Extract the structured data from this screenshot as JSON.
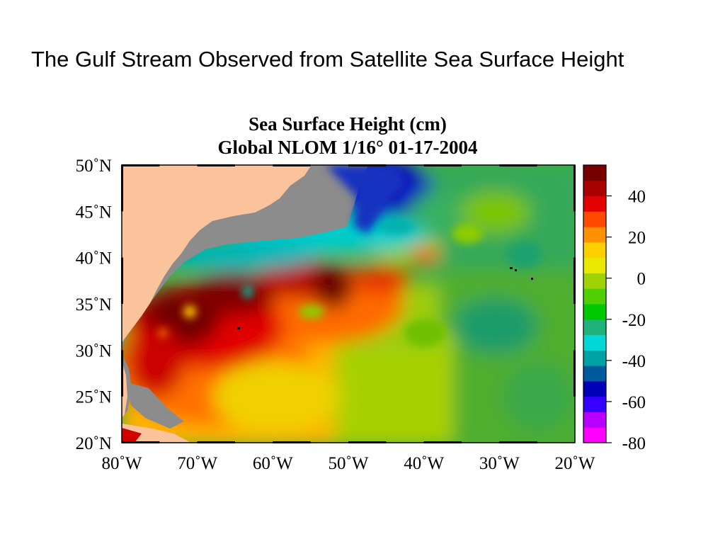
{
  "slide": {
    "title": "The Gulf Stream Observed from Satellite Sea Surface Height"
  },
  "map": {
    "title": "Sea Surface Height (cm)",
    "subtitle": "Global NLOM 1/16°  01-17-2004",
    "lat_labels": [
      "50˚N",
      "45˚N",
      "40˚N",
      "35˚N",
      "30˚N",
      "25˚N",
      "20˚N"
    ],
    "lon_labels": [
      "80˚W",
      "70˚W",
      "60˚W",
      "50˚W",
      "40˚W",
      "30˚W",
      "20˚W"
    ],
    "extent": {
      "lon": [
        -80,
        -20
      ],
      "lat": [
        20,
        50
      ]
    },
    "colors": {
      "land": "#fbc39c",
      "shelf_mask": "#8c8c8c"
    }
  },
  "colorbar": {
    "labels": [
      "40",
      "20",
      "0",
      "-20",
      "-40",
      "-60",
      "-80"
    ],
    "range": [
      -80,
      55
    ],
    "bands": [
      "#ff00ff",
      "#b700ff",
      "#3500ff",
      "#0000b9",
      "#005a9b",
      "#00a3a3",
      "#00d8d8",
      "#1fb27a",
      "#00c800",
      "#4fcf00",
      "#9ed200",
      "#e8e800",
      "#ffd000",
      "#ff9000",
      "#ff4a00",
      "#e30000",
      "#a90000",
      "#770000"
    ]
  }
}
